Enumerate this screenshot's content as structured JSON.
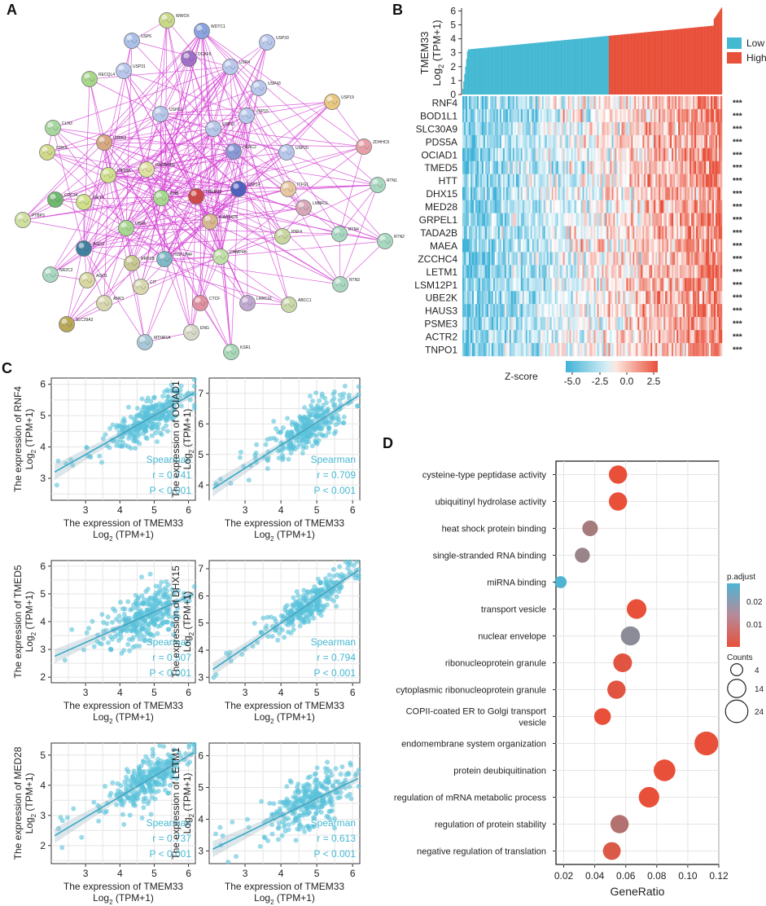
{
  "panels": {
    "a": "A",
    "b": "B",
    "c": "C",
    "d": "D"
  },
  "colors": {
    "edge": "#d43fd4",
    "low": "#45b8d2",
    "high": "#e8503a",
    "scatter": "#58c2da",
    "grid": "#e5e5e5",
    "spearman": "#45b8d2"
  },
  "network": {
    "nodes": [
      {
        "id": "WWOX",
        "color": "#c9d98a"
      },
      {
        "id": "USP6",
        "color": "#a9c0e8"
      },
      {
        "id": "WDTC1",
        "color": "#8ba4e0"
      },
      {
        "id": "USP33",
        "color": "#b8c8ec"
      },
      {
        "id": "USP4",
        "color": "#b8c8ec"
      },
      {
        "id": "DCAF6",
        "color": "#a070c8"
      },
      {
        "id": "USP31",
        "color": "#b8c8ec"
      },
      {
        "id": "RECQL4",
        "color": "#a8d68a"
      },
      {
        "id": "USP43",
        "color": "#b8c8ec"
      },
      {
        "id": "USP19",
        "color": "#e8c880"
      },
      {
        "id": "CLN3",
        "color": "#a8d8a0"
      },
      {
        "id": "USP32",
        "color": "#b8c8ec"
      },
      {
        "id": "USP15",
        "color": "#b8c8ec"
      },
      {
        "id": "USP11",
        "color": "#b8c8ec"
      },
      {
        "id": "LRRK2",
        "color": "#d8a880"
      },
      {
        "id": "CDK9",
        "color": "#d0d88a"
      },
      {
        "id": "HERC2",
        "color": "#8a98d8"
      },
      {
        "id": "ZDHHC5",
        "color": "#e8a0a8"
      },
      {
        "id": "USP20",
        "color": "#b8c8ec"
      },
      {
        "id": "HNRNPH1",
        "color": "#e0e0a0"
      },
      {
        "id": "KIF20A",
        "color": "#d0e08a"
      },
      {
        "id": "USP14",
        "color": "#5060c0"
      },
      {
        "id": "ITFG1",
        "color": "#e8c8a0"
      },
      {
        "id": "RTN1",
        "color": "#a8d8c0"
      },
      {
        "id": "CDC34",
        "color": "#70b870"
      },
      {
        "id": "KIF14",
        "color": "#d0e08a"
      },
      {
        "id": "PHB",
        "color": "#a8d890"
      },
      {
        "id": "TMEM33",
        "color": "#d04848"
      },
      {
        "id": "LMBR1L",
        "color": "#d8a8b8"
      },
      {
        "id": "PTBP3",
        "color": "#d0e0a0"
      },
      {
        "id": "KIAA1429",
        "color": "#d8b890"
      },
      {
        "id": "RTN4",
        "color": "#a8d8c0"
      },
      {
        "id": "RTN2",
        "color": "#a8d8c0"
      },
      {
        "id": "UBR5",
        "color": "#a8d890"
      },
      {
        "id": "AGO2",
        "color": "#4080a0"
      },
      {
        "id": "RNF4",
        "color": "#c8d8a0"
      },
      {
        "id": "CHMP4B",
        "color": "#c0e0a8"
      },
      {
        "id": "NR2C2",
        "color": "#a8d8c0"
      },
      {
        "id": "RRP1B",
        "color": "#c8c890"
      },
      {
        "id": "HIST1H4F",
        "color": "#80b8c8"
      },
      {
        "id": "AGO1",
        "color": "#d8d8a0"
      },
      {
        "id": "CIT",
        "color": "#d8d8b0"
      },
      {
        "id": "RTN3",
        "color": "#a8d8c0"
      },
      {
        "id": "ANK3",
        "color": "#d8d8b0"
      },
      {
        "id": "CTCF",
        "color": "#e090a0"
      },
      {
        "id": "LRRC31",
        "color": "#c0a8d0"
      },
      {
        "id": "ABCC1",
        "color": "#c8d8a8"
      },
      {
        "id": "SLC29A2",
        "color": "#b8a858"
      },
      {
        "id": "ENG",
        "color": "#d8d8c8"
      },
      {
        "id": "MTNR1A",
        "color": "#a8c8d8"
      },
      {
        "id": "KSR1",
        "color": "#a8d8b8"
      }
    ]
  },
  "heatmap": {
    "ylabel_line1": "TMEM33",
    "ylabel_line2": "Log",
    "ylabel_sub": "2",
    "ylabel_line3": " (TPM+1)",
    "yticks": [
      "0",
      "1",
      "2",
      "3",
      "4",
      "5",
      "6"
    ],
    "legend": {
      "low": "Low",
      "high": "High"
    },
    "genes": [
      "RNF4",
      "BOD1L1",
      "SLC30A9",
      "PDS5A",
      "OCIAD1",
      "TMED5",
      "HTT",
      "DHX15",
      "MED28",
      "GRPEL1",
      "TADA2B",
      "MAEA",
      "ZCCHC4",
      "LETM1",
      "LSM12P1",
      "UBE2K",
      "HAUS3",
      "PSME3",
      "ACTR2",
      "TNPO1"
    ],
    "sig": "***",
    "zscore_label": "Z-score",
    "zscore_ticks": [
      "-5.0",
      "-2.5",
      "0.0",
      "2.5"
    ]
  },
  "chart_data": [
    {
      "type": "scatter",
      "xlabel_line1": "The expression of TMEM33",
      "xlabel_line2": "Log",
      "xlabel_sub": "2",
      "xlabel_line3": " (TPM+1)",
      "scatters": [
        {
          "gene": "RNF4",
          "r": "r = 0.741",
          "p": "P < 0.001",
          "ylim": [
            2.3,
            6.2
          ],
          "yticks": [
            "3",
            "4",
            "5",
            "6"
          ],
          "intercept": 1.9,
          "slope": 0.62
        },
        {
          "gene": "OCIAD1",
          "r": "r = 0.709",
          "p": "P < 0.001",
          "ylim": [
            3.5,
            7.5
          ],
          "yticks": [
            "4",
            "5",
            "6",
            "7"
          ],
          "intercept": 2.3,
          "slope": 0.75
        },
        {
          "gene": "TMED5",
          "r": "r = 0.507",
          "p": "P < 0.001",
          "ylim": [
            1.8,
            6.2
          ],
          "yticks": [
            "2",
            "3",
            "4",
            "5",
            "6"
          ],
          "intercept": 1.6,
          "slope": 0.55
        },
        {
          "gene": "DHX15",
          "r": "r = 0.794",
          "p": "P < 0.001",
          "ylim": [
            2.8,
            7.3
          ],
          "yticks": [
            "3",
            "4",
            "5",
            "6",
            "7"
          ],
          "intercept": 1.4,
          "slope": 0.9
        },
        {
          "gene": "MED28",
          "r": "r = 0.737",
          "p": "P < 0.001",
          "ylim": [
            1.4,
            5.4
          ],
          "yticks": [
            "2",
            "3",
            "4",
            "5"
          ],
          "intercept": 0.9,
          "slope": 0.68
        },
        {
          "gene": "LETM1",
          "r": "r = 0.613",
          "p": "P < 0.001",
          "ylim": [
            2.6,
            6.4
          ],
          "yticks": [
            "3",
            "4",
            "5",
            "6"
          ],
          "intercept": 1.9,
          "slope": 0.55
        }
      ],
      "xlim": [
        2.0,
        6.2
      ],
      "xticks": [
        "3",
        "4",
        "5",
        "6"
      ],
      "ylabel_prefix": "The expression of ",
      "ylabel_line2": "Log",
      "ylabel_sub": "2",
      "ylabel_line3": " (TPM+1)",
      "spearman": "Spearman"
    },
    {
      "type": "scatter",
      "subtype": "dotplot",
      "title": "",
      "xlabel": "GeneRatio",
      "xlim": [
        0.015,
        0.12
      ],
      "xticks": [
        "0.02",
        "0.04",
        "0.06",
        "0.08",
        "0.10",
        "0.12"
      ],
      "terms": [
        {
          "term": "cysteine-type peptidase activity",
          "ratio": 0.055,
          "padj": 0.006,
          "count": 14
        },
        {
          "term": "ubiquitinyl hydrolase activity",
          "ratio": 0.055,
          "padj": 0.006,
          "count": 14
        },
        {
          "term": "heat shock protein binding",
          "ratio": 0.037,
          "padj": 0.016,
          "count": 9
        },
        {
          "term": "single-stranded RNA binding",
          "ratio": 0.032,
          "padj": 0.018,
          "count": 8
        },
        {
          "term": "miRNA binding",
          "ratio": 0.018,
          "padj": 0.029,
          "count": 4
        },
        {
          "term": "transport vesicle",
          "ratio": 0.067,
          "padj": 0.006,
          "count": 17
        },
        {
          "term": "nuclear envelope",
          "ratio": 0.063,
          "padj": 0.02,
          "count": 16
        },
        {
          "term": "ribonucleoprotein granule",
          "ratio": 0.058,
          "padj": 0.007,
          "count": 15
        },
        {
          "term": "cytoplasmic ribonucleoprotein granule",
          "ratio": 0.054,
          "padj": 0.007,
          "count": 14
        },
        {
          "term": "COPII-coated ER to Golgi transport vesicle",
          "ratio": 0.045,
          "padj": 0.006,
          "count": 11
        },
        {
          "term": "endomembrane system organization",
          "ratio": 0.112,
          "padj": 0.006,
          "count": 28
        },
        {
          "term": "protein deubiquitination",
          "ratio": 0.085,
          "padj": 0.006,
          "count": 22
        },
        {
          "term": "regulation of mRNA metabolic process",
          "ratio": 0.075,
          "padj": 0.006,
          "count": 19
        },
        {
          "term": "regulation of protein stability",
          "ratio": 0.056,
          "padj": 0.014,
          "count": 14
        },
        {
          "term": "negative regulation of translation",
          "ratio": 0.051,
          "padj": 0.008,
          "count": 13
        }
      ],
      "legend_padj_title": "p.adjust",
      "legend_padj_ticks": [
        "0.02",
        "0.01"
      ],
      "legend_count_title": "Counts",
      "legend_count_ticks": [
        "4",
        "14",
        "24"
      ]
    }
  ]
}
